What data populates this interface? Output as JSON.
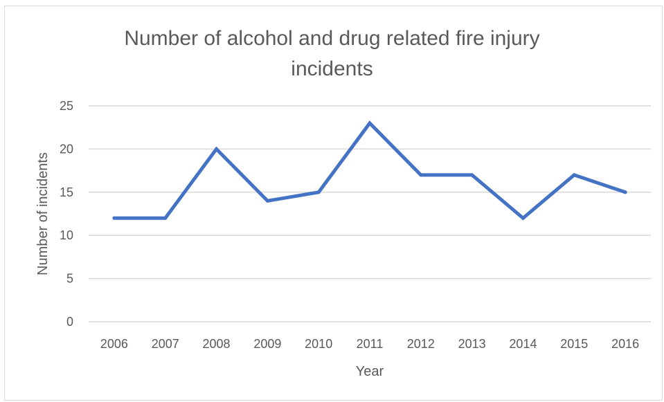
{
  "chart_data": {
    "type": "line",
    "title_lines": [
      "Number of alcohol and drug related fire injury",
      "incidents"
    ],
    "xlabel": "Year",
    "ylabel": "Number of incidents",
    "categories": [
      "2006",
      "2007",
      "2008",
      "2009",
      "2010",
      "2011",
      "2012",
      "2013",
      "2014",
      "2015",
      "2016"
    ],
    "series": [
      {
        "values": [
          12,
          12,
          20,
          14,
          15,
          23,
          17,
          17,
          12,
          17,
          15
        ]
      }
    ],
    "ylim": [
      0,
      25
    ],
    "yticks": [
      0,
      5,
      10,
      15,
      20,
      25
    ],
    "grid": true,
    "legend": "none",
    "colors": {
      "line": "#4472c4",
      "grid": "#d9d9d9",
      "text": "#595959"
    }
  }
}
